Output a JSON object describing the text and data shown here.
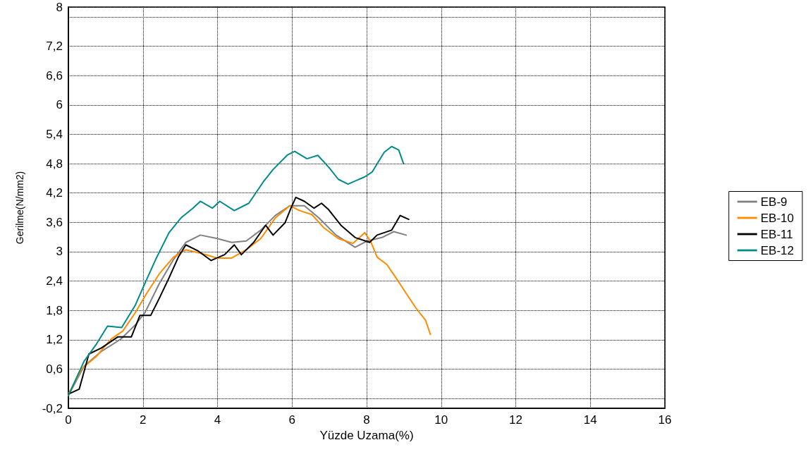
{
  "chart_data": {
    "type": "line",
    "xlabel": "Yüzde Uzama(%)",
    "ylabel": "Gerilme(N/mm2)",
    "xlim": [
      0,
      16
    ],
    "xticks": [
      0,
      2,
      4,
      6,
      8,
      10,
      12,
      14,
      16
    ],
    "ylim": [
      -0.2,
      8
    ],
    "yticks": [
      {
        "value": -0.2,
        "label": "-0,2"
      },
      {
        "value": 0,
        "label": null
      },
      {
        "value": 0.6,
        "label": "0,6"
      },
      {
        "value": 1.2,
        "label": "1,2"
      },
      {
        "value": 1.8,
        "label": "1,8"
      },
      {
        "value": 2.4,
        "label": "2,4"
      },
      3,
      {
        "value": 3.6,
        "label": "3,6"
      },
      {
        "value": 4.2,
        "label": "4,2"
      },
      {
        "value": 4.8,
        "label": "4,8"
      },
      {
        "value": 5.4,
        "label": "5,4"
      },
      6,
      {
        "value": 6.6,
        "label": "6,6"
      },
      {
        "value": 7.2,
        "label": "7,2"
      },
      {
        "value": 7.8,
        "label": null
      },
      8
    ],
    "grid": true,
    "legend": "right",
    "marker": "none",
    "line_style": "solid",
    "series": [
      {
        "name": "EB-9",
        "color": "#808080",
        "x": [
          0,
          0.42,
          0.88,
          1.4,
          1.79,
          2.05,
          2.44,
          2.82,
          3.15,
          3.54,
          3.99,
          4.38,
          4.77,
          5.16,
          5.55,
          5.94,
          6.33,
          6.72,
          7.18,
          7.69,
          8.02,
          8.41,
          8.73,
          9.06
        ],
        "values": [
          0.06,
          0.66,
          0.96,
          1.21,
          1.5,
          1.75,
          2.35,
          2.84,
          3.19,
          3.34,
          3.27,
          3.19,
          3.22,
          3.44,
          3.74,
          3.94,
          3.94,
          3.69,
          3.34,
          3.09,
          3.22,
          3.29,
          3.41,
          3.34
        ]
      },
      {
        "name": "EB-10",
        "color": "#ff8c00",
        "x": [
          0,
          0.36,
          0.75,
          1.14,
          1.46,
          1.79,
          2.1,
          2.44,
          2.82,
          3.15,
          3.54,
          3.99,
          4.38,
          4.77,
          5.16,
          5.55,
          5.94,
          6.2,
          6.53,
          6.85,
          7.24,
          7.63,
          7.95,
          8.12,
          8.28,
          8.54,
          8.8,
          9.06,
          9.32,
          9.58,
          9.71
        ],
        "values": [
          0.09,
          0.61,
          0.86,
          1.21,
          1.38,
          1.75,
          2.15,
          2.55,
          2.89,
          3.04,
          2.97,
          2.87,
          2.87,
          3.04,
          3.27,
          3.69,
          3.94,
          3.84,
          3.76,
          3.49,
          3.27,
          3.17,
          3.39,
          3.19,
          2.89,
          2.74,
          2.45,
          2.15,
          1.85,
          1.6,
          1.31
        ]
      },
      {
        "name": "EB-11",
        "color": "#000000",
        "x": [
          0,
          0.29,
          0.55,
          0.88,
          1.33,
          1.69,
          1.92,
          2.21,
          2.44,
          2.69,
          2.95,
          3.15,
          3.47,
          3.83,
          4.19,
          4.45,
          4.64,
          4.97,
          5.29,
          5.49,
          5.81,
          5.97,
          6.1,
          6.33,
          6.59,
          6.79,
          6.98,
          7.31,
          7.69,
          8.08,
          8.28,
          8.67,
          8.9,
          9.13
        ],
        "values": [
          0.09,
          0.19,
          0.91,
          1.03,
          1.26,
          1.26,
          1.7,
          1.7,
          2.05,
          2.45,
          2.89,
          3.14,
          3.02,
          2.82,
          2.94,
          3.14,
          2.94,
          3.19,
          3.54,
          3.34,
          3.59,
          3.89,
          4.11,
          4.03,
          3.89,
          3.99,
          3.86,
          3.54,
          3.29,
          3.19,
          3.34,
          3.44,
          3.74,
          3.66
        ]
      },
      {
        "name": "EB-12",
        "color": "#008b8b",
        "x": [
          0,
          0.42,
          0.75,
          1.05,
          1.43,
          1.79,
          2.05,
          2.34,
          2.7,
          3.02,
          3.34,
          3.54,
          3.86,
          4.06,
          4.45,
          4.84,
          5.23,
          5.49,
          5.88,
          6.07,
          6.4,
          6.69,
          6.98,
          7.24,
          7.5,
          7.95,
          8.15,
          8.47,
          8.67,
          8.86,
          8.99
        ],
        "values": [
          0.06,
          0.76,
          1.11,
          1.48,
          1.45,
          1.9,
          2.35,
          2.84,
          3.39,
          3.69,
          3.89,
          4.03,
          3.89,
          4.03,
          3.84,
          3.99,
          4.43,
          4.68,
          4.98,
          5.05,
          4.9,
          4.97,
          4.73,
          4.48,
          4.38,
          4.53,
          4.63,
          5.03,
          5.15,
          5.08,
          4.8
        ]
      }
    ]
  }
}
